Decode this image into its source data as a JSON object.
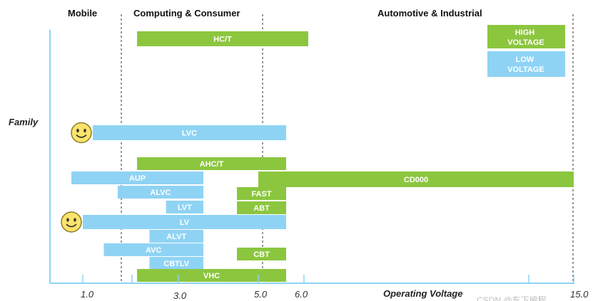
{
  "chart_data": {
    "type": "bar",
    "orientation": "horizontal-range",
    "title": "",
    "xlabel": "Operating Voltage",
    "ylabel": "Family",
    "x_ticks": [
      "1.0",
      "3.0",
      "5.0",
      "6.0",
      "15.0"
    ],
    "regions": [
      {
        "name": "Mobile"
      },
      {
        "name": "Computing & Consumer"
      },
      {
        "name": "Automotive & Industrial"
      }
    ],
    "legend": [
      {
        "label": "HIGH VOLTAGE",
        "color": "#8cc63f"
      },
      {
        "label": "LOW VOLTAGE",
        "color": "#8fd3f4"
      }
    ],
    "families": [
      {
        "name": "HC/T",
        "class": "high",
        "min_v": 2.0,
        "max_v": 6.0
      },
      {
        "name": "LVC",
        "class": "low",
        "min_v": 1.2,
        "max_v": 5.5,
        "icon": "smiley"
      },
      {
        "name": "AHC/T",
        "class": "high",
        "min_v": 2.0,
        "max_v": 5.5
      },
      {
        "name": "AUP",
        "class": "low",
        "min_v": 0.8,
        "max_v": 3.6
      },
      {
        "name": "CD000",
        "class": "high",
        "min_v": 5.0,
        "max_v": 15.0
      },
      {
        "name": "ALVC",
        "class": "low",
        "min_v": 1.65,
        "max_v": 3.6
      },
      {
        "name": "FAST",
        "class": "high",
        "min_v": 4.5,
        "max_v": 5.5
      },
      {
        "name": "LVT",
        "class": "low",
        "min_v": 2.7,
        "max_v": 3.6
      },
      {
        "name": "ABT",
        "class": "high",
        "min_v": 4.5,
        "max_v": 5.5
      },
      {
        "name": "LV",
        "class": "low",
        "min_v": 1.0,
        "max_v": 5.5,
        "icon": "smiley"
      },
      {
        "name": "ALVT",
        "class": "low",
        "min_v": 2.3,
        "max_v": 3.6
      },
      {
        "name": "AVC",
        "class": "low",
        "min_v": 1.4,
        "max_v": 3.6
      },
      {
        "name": "CBT",
        "class": "high",
        "min_v": 4.5,
        "max_v": 5.5
      },
      {
        "name": "CBTLV",
        "class": "low",
        "min_v": 2.3,
        "max_v": 3.6
      },
      {
        "name": "VHC",
        "class": "high",
        "min_v": 2.0,
        "max_v": 5.5
      }
    ]
  },
  "watermark": "CSDN @东下编程"
}
